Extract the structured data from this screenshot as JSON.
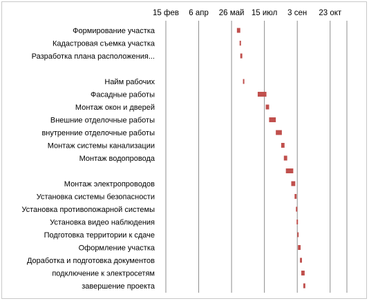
{
  "chart_data": {
    "type": "bar",
    "subtype": "gantt",
    "orientation": "horizontal",
    "title": "",
    "xlabel": "",
    "ylabel": "",
    "x_axis_position": "top",
    "grid": "vertical",
    "legend": "none",
    "bar_color": "#c0504d",
    "x_ticks": [
      "15 фев",
      "6 апр",
      "26 май",
      "15 июл",
      "3 сен",
      "23 окт"
    ],
    "xlim": [
      "2013-02-15",
      "2013-11-12"
    ],
    "tasks": [
      {
        "label": "Формирование участка",
        "start": "2013-06-01",
        "end": "2013-06-06"
      },
      {
        "label": "Кадастровая съемка участка",
        "start": "2013-06-05",
        "end": "2013-06-07"
      },
      {
        "label": "Разработка плана расположения...",
        "start": "2013-06-06",
        "end": "2013-06-09"
      },
      {
        "label": "",
        "start": null,
        "end": null
      },
      {
        "label": "Найм рабочих",
        "start": "2013-06-10",
        "end": "2013-06-12"
      },
      {
        "label": "Фасадные работы",
        "start": "2013-07-02",
        "end": "2013-07-15"
      },
      {
        "label": "Монтаж окон и дверей",
        "start": "2013-07-14",
        "end": "2013-07-19"
      },
      {
        "label": "Внешние отделочные работы",
        "start": "2013-07-19",
        "end": "2013-07-29"
      },
      {
        "label": "внутренние отделочные работы",
        "start": "2013-07-29",
        "end": "2013-08-07"
      },
      {
        "label": "Монтаж системы канализации",
        "start": "2013-08-06",
        "end": "2013-08-11"
      },
      {
        "label": "Монтаж водопровода",
        "start": "2013-08-10",
        "end": "2013-08-15"
      },
      {
        "label": "",
        "start": "2013-08-13",
        "end": "2013-08-24"
      },
      {
        "label": "Монтаж электропроводов",
        "start": "2013-08-21",
        "end": "2013-08-27"
      },
      {
        "label": "Установка системы безопасности",
        "start": "2013-08-26",
        "end": "2013-08-29"
      },
      {
        "label": "Установка противопожарной системы",
        "start": "2013-08-28",
        "end": "2013-08-30"
      },
      {
        "label": "Установка видео наблюдения",
        "start": "2013-08-29",
        "end": "2013-08-31"
      },
      {
        "label": "Подготовка территории к сдаче",
        "start": "2013-08-30",
        "end": "2013-09-01"
      },
      {
        "label": "Оформление участка",
        "start": "2013-08-31",
        "end": "2013-09-04"
      },
      {
        "label": "Доработка и подготовка документов",
        "start": "2013-09-03",
        "end": "2013-09-06"
      },
      {
        "label": "подключение к электросетям",
        "start": "2013-09-05",
        "end": "2013-09-10"
      },
      {
        "label": "завершение проекта",
        "start": "2013-09-08",
        "end": "2013-09-11"
      }
    ]
  }
}
